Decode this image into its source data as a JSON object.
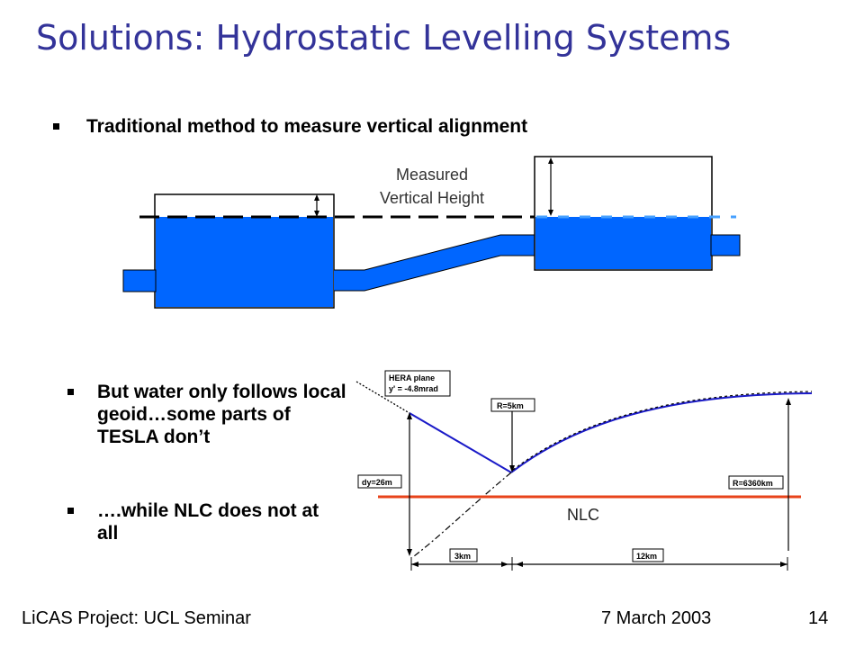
{
  "slide": {
    "title": "Solutions: Hydrostatic Levelling Systems",
    "bullets": [
      "Traditional method to measure vertical alignment",
      "But water only follows local geoid…some parts of TESLA don’t",
      "….while NLC does not at all"
    ]
  },
  "diagram_top": {
    "label_line1": "Measured",
    "label_line2": "Vertical Height"
  },
  "diagram_bottom": {
    "box_hera_line1": "HERA plane",
    "box_hera_line2": "y' = -4.8mrad",
    "box_r5": "R=5km",
    "box_dy": "dy=26m",
    "box_r6360": "R=6360km",
    "box_3km": "3km",
    "box_12km": "12km",
    "nlc_label": "NLC"
  },
  "footer": {
    "project": "LiCAS Project: UCL Seminar",
    "date": "7 March 2003",
    "page": "14"
  },
  "colors": {
    "title": "#333399",
    "water": "#0066FF",
    "curve_blue": "#1A1AC8",
    "nlc_line": "#E8431A"
  }
}
